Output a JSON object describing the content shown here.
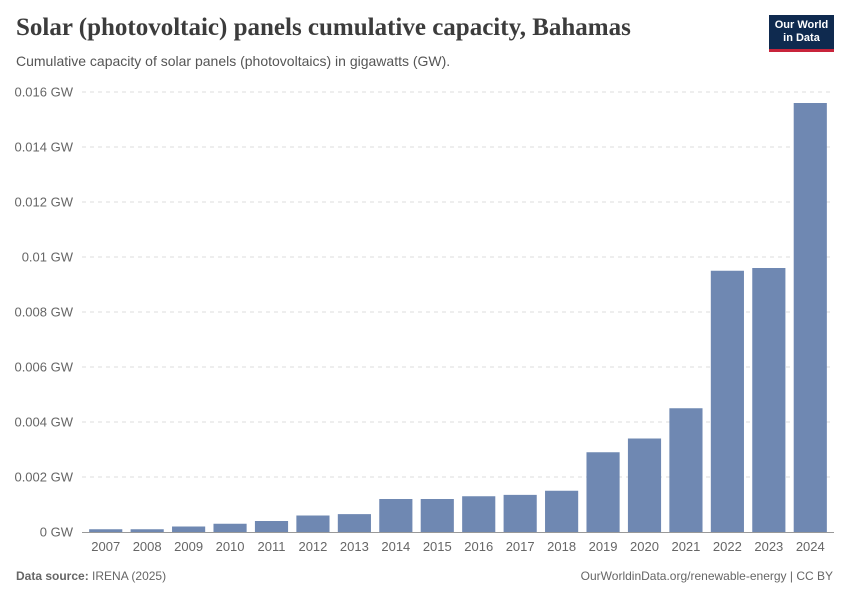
{
  "title": "Solar (photovoltaic) panels cumulative capacity, Bahamas",
  "subtitle": "Cumulative capacity of solar panels (photovoltaics) in gigawatts (GW).",
  "logo": {
    "line1": "Our World",
    "line2": "in Data"
  },
  "footer": {
    "source_label": "Data source:",
    "source_value": "IRENA (2025)",
    "right": "OurWorldinData.org/renewable-energy | CC BY"
  },
  "colors": {
    "bar": "#6f88b2",
    "grid": "#dddddd",
    "axis": "#999999",
    "text": "#666666"
  },
  "chart_data": {
    "type": "bar",
    "categories": [
      "2007",
      "2008",
      "2009",
      "2010",
      "2011",
      "2012",
      "2013",
      "2014",
      "2015",
      "2016",
      "2017",
      "2018",
      "2019",
      "2020",
      "2021",
      "2022",
      "2023",
      "2024"
    ],
    "values": [
      0.0001,
      0.0001,
      0.0002,
      0.0003,
      0.0004,
      0.0006,
      0.00065,
      0.0012,
      0.0012,
      0.0013,
      0.00135,
      0.0015,
      0.0029,
      0.0034,
      0.0045,
      0.0095,
      0.0096,
      0.0156
    ],
    "ylim": [
      0,
      0.016
    ],
    "yticks": [
      0,
      0.002,
      0.004,
      0.006,
      0.008,
      0.01,
      0.012,
      0.014,
      0.016
    ],
    "ytick_labels": [
      "0 GW",
      "0.002 GW",
      "0.004 GW",
      "0.006 GW",
      "0.008 GW",
      "0.01 GW",
      "0.012 GW",
      "0.014 GW",
      "0.016 GW"
    ],
    "grid": true,
    "legend": "none"
  }
}
